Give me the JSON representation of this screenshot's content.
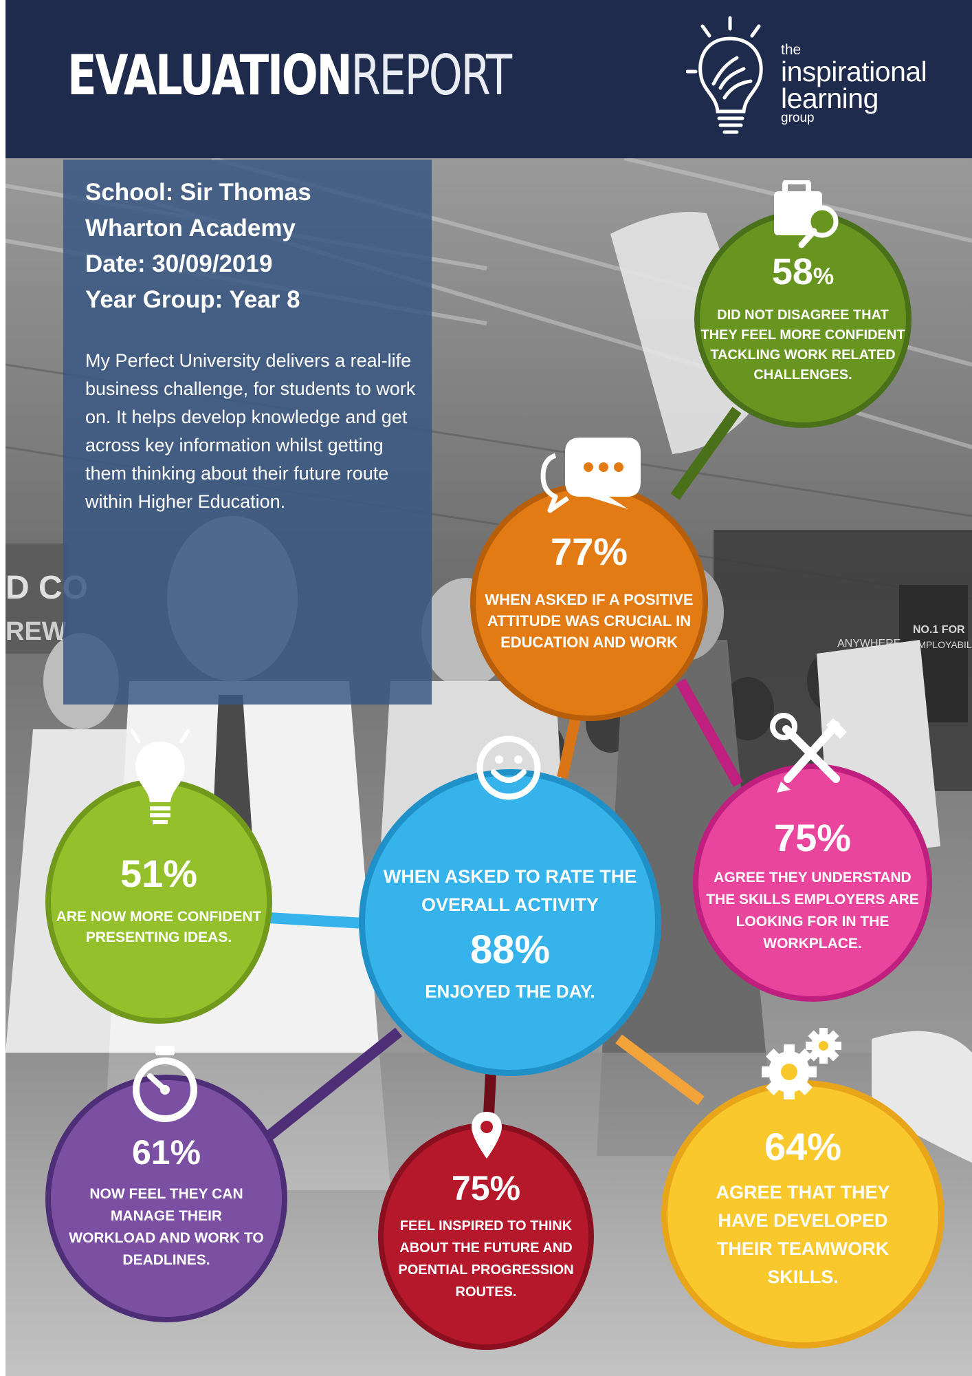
{
  "header": {
    "title_bold": "EVALUATION",
    "title_light": "REPORT",
    "logo": {
      "the": "the",
      "inspirational": "inspirational",
      "learning": "learning",
      "group": "group"
    }
  },
  "info": {
    "school_line1": "School: Sir Thomas",
    "school_line2": "Wharton Academy",
    "date": "Date: 30/09/2019",
    "year_group": "Year Group:  Year 8",
    "description": "My Perfect University delivers a real-life business challenge, for students to work on. It helps develop knowledge and get across key information whilst getting them thinking about their future route within Higher Education."
  },
  "background_sign": {
    "text1": "D CO",
    "text2": "REW"
  },
  "stats": {
    "confidence_work": {
      "percent": "58",
      "percent_sign": "%",
      "lines": [
        "DID NOT DISAGREE THAT",
        "THEY FEEL MORE CONFIDENT",
        "TACKLING WORK RELATED",
        "CHALLENGES."
      ],
      "color": "#689520",
      "icon": "briefcase-search-icon"
    },
    "positive_attitude": {
      "percent": "77%",
      "lines": [
        "WHEN ASKED IF A POSITIVE",
        "ATTITUDE WAS CRUCIAL IN",
        "EDUCATION AND WORK"
      ],
      "color": "#e37b15",
      "icon": "speech-bubbles-icon"
    },
    "presenting": {
      "percent": "51%",
      "lines": [
        "ARE NOW MORE CONFIDENT",
        "PRESENTING IDEAS."
      ],
      "color": "#94c02b",
      "icon": "light-bulb-icon"
    },
    "overall": {
      "question_lines": [
        "WHEN ASKED TO RATE THE",
        "OVERALL ACTIVITY"
      ],
      "percent": "88%",
      "lines": [
        "ENJOYED THE DAY."
      ],
      "color": "#36b3ea",
      "icon": "smiley-icon"
    },
    "employer_skills": {
      "percent": "75%",
      "lines": [
        "AGREE THEY UNDERSTAND",
        "THE SKILLS EMPLOYERS ARE",
        "LOOKING FOR IN THE",
        "WORKPLACE."
      ],
      "color": "#e9459c",
      "icon": "tools-icon"
    },
    "workload": {
      "percent": "61%",
      "lines": [
        "NOW FEEL THEY CAN",
        "MANAGE THEIR",
        "WORKLOAD AND WORK TO",
        "DEADLINES."
      ],
      "color": "#7b4fa1",
      "icon": "stopwatch-icon"
    },
    "future": {
      "percent": "75%",
      "lines": [
        "FEEL INSPIRED TO THINK",
        "ABOUT THE FUTURE AND",
        "POENTIAL PROGRESSION",
        "ROUTES."
      ],
      "color": "#b5182b",
      "icon": "map-pin-icon"
    },
    "teamwork": {
      "percent": "64%",
      "lines": [
        "AGREE THAT THEY",
        "HAVE DEVELOPED",
        "THEIR TEAMWORK",
        "SKILLS."
      ],
      "color": "#f8c82d",
      "icon": "gears-icon"
    }
  }
}
